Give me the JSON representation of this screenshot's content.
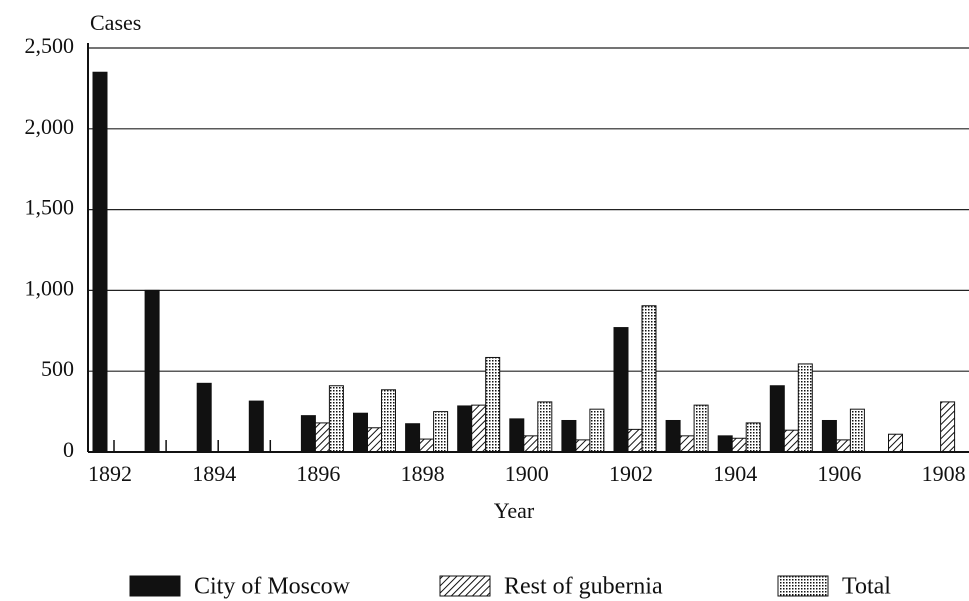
{
  "chart_data": {
    "type": "bar",
    "y_label": "Cases",
    "x_label": "Year",
    "categories": [
      "1892",
      null,
      "1894",
      null,
      "1896",
      null,
      "1898",
      null,
      "1900",
      null,
      "1902",
      null,
      "1904",
      null,
      "1906",
      null,
      "1908"
    ],
    "series": [
      {
        "name": "City of Moscow",
        "color": "#111111",
        "fill": "solid",
        "values": [
          2350,
          1000,
          425,
          315,
          225,
          240,
          175,
          285,
          205,
          195,
          770,
          195,
          100,
          410,
          195,
          null,
          null
        ]
      },
      {
        "name": "Rest of gubernia",
        "color": "#111111",
        "fill": "hatch",
        "values": [
          null,
          null,
          null,
          null,
          180,
          150,
          80,
          290,
          100,
          75,
          140,
          100,
          85,
          135,
          75,
          110,
          310
        ]
      },
      {
        "name": "Total",
        "color": "#111111",
        "fill": "dots",
        "values": [
          null,
          null,
          null,
          null,
          410,
          385,
          250,
          585,
          310,
          265,
          905,
          290,
          180,
          545,
          265,
          null,
          null
        ]
      }
    ],
    "ylim": [
      0,
      2500
    ],
    "yticks": [
      0,
      500,
      {
        "value": 1000,
        "label": "1,000"
      },
      {
        "value": 1500,
        "label": "1,500"
      },
      {
        "value": 2000,
        "label": "2,000"
      },
      {
        "value": 2500,
        "label": "2,500"
      }
    ],
    "grid": true,
    "legend": "bottom"
  }
}
